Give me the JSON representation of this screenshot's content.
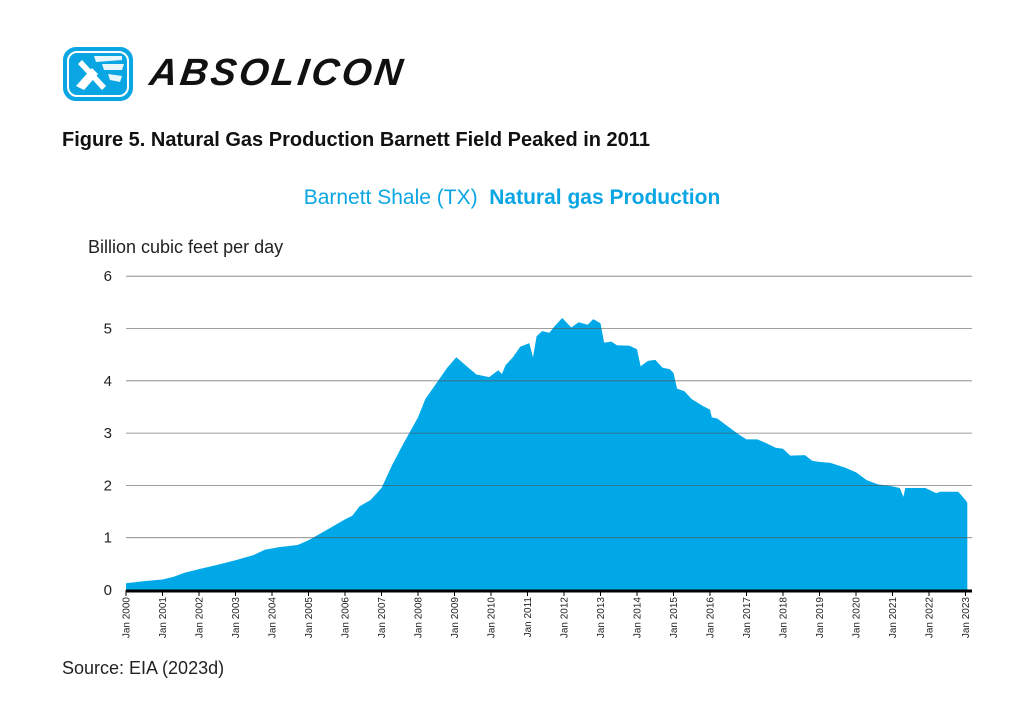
{
  "brand": {
    "name": "ABSOLICON",
    "logo_icon": "solar-collector-logo",
    "accent": "#0aa6e4"
  },
  "figure_title": "Figure 5. Natural Gas Production Barnett Field Peaked in 2011",
  "source": "Source: EIA (2023d)",
  "chart_data": {
    "type": "area",
    "title_part1": "Barnett Shale (TX)",
    "title_part2": "Natural gas Production",
    "ylabel": "Billion cubic feet per day",
    "xlabel": "",
    "ylim": [
      0,
      6
    ],
    "yticks": [
      "0",
      "1",
      "2",
      "3",
      "4",
      "5",
      "6"
    ],
    "xlim": [
      2000,
      2023.05
    ],
    "xticks": [
      "Jan 2000",
      "Jan 2001",
      "Jan 2002",
      "Jan 2003",
      "Jan 2004",
      "Jan 2005",
      "Jan 2006",
      "Jan 2007",
      "Jan 2008",
      "Jan 2009",
      "Jan 2010",
      "Jan 2011",
      "Jan 2012",
      "Jan 2013",
      "Jan 2014",
      "Jan 2015",
      "Jan 2016",
      "Jan 2017",
      "Jan 2018",
      "Jan 2019",
      "Jan 2020",
      "Jan 2021",
      "Jan 2022",
      "Jan 2023"
    ],
    "grid": true,
    "color": "#00a8e8",
    "x": [
      2000.0,
      2000.5,
      2001.0,
      2001.3,
      2001.6,
      2002.0,
      2002.5,
      2003.0,
      2003.5,
      2003.8,
      2004.2,
      2004.7,
      2005.0,
      2005.5,
      2006.0,
      2006.2,
      2006.4,
      2006.7,
      2007.0,
      2007.3,
      2007.6,
      2008.0,
      2008.2,
      2008.5,
      2008.8,
      2009.05,
      2009.3,
      2009.6,
      2009.95,
      2010.2,
      2010.3,
      2010.4,
      2010.6,
      2010.8,
      2011.05,
      2011.15,
      2011.25,
      2011.4,
      2011.6,
      2011.75,
      2011.95,
      2012.2,
      2012.4,
      2012.65,
      2012.8,
      2013.0,
      2013.1,
      2013.3,
      2013.45,
      2013.8,
      2014.0,
      2014.1,
      2014.3,
      2014.5,
      2014.7,
      2014.9,
      2015.0,
      2015.1,
      2015.3,
      2015.5,
      2015.8,
      2016.0,
      2016.05,
      2016.2,
      2016.5,
      2016.8,
      2017.0,
      2017.3,
      2017.5,
      2017.8,
      2018.0,
      2018.2,
      2018.6,
      2018.8,
      2019.0,
      2019.3,
      2019.7,
      2020.0,
      2020.3,
      2020.6,
      2021.0,
      2021.2,
      2021.3,
      2021.35,
      2021.9,
      2022.2,
      2022.3,
      2022.8,
      2023.0,
      2023.05
    ],
    "values": [
      0.13,
      0.17,
      0.2,
      0.25,
      0.33,
      0.4,
      0.48,
      0.57,
      0.67,
      0.77,
      0.82,
      0.86,
      0.95,
      1.15,
      1.35,
      1.42,
      1.6,
      1.72,
      1.95,
      2.4,
      2.8,
      3.3,
      3.65,
      3.95,
      4.25,
      4.45,
      4.3,
      4.12,
      4.07,
      4.2,
      4.13,
      4.3,
      4.45,
      4.65,
      4.72,
      4.45,
      4.85,
      4.95,
      4.92,
      5.05,
      5.2,
      5.02,
      5.12,
      5.07,
      5.18,
      5.1,
      4.73,
      4.75,
      4.68,
      4.67,
      4.6,
      4.28,
      4.38,
      4.4,
      4.25,
      4.22,
      4.15,
      3.85,
      3.8,
      3.65,
      3.52,
      3.45,
      3.3,
      3.28,
      3.12,
      2.97,
      2.88,
      2.88,
      2.82,
      2.72,
      2.7,
      2.57,
      2.58,
      2.47,
      2.45,
      2.43,
      2.34,
      2.25,
      2.1,
      2.02,
      1.98,
      1.95,
      1.78,
      1.95,
      1.95,
      1.85,
      1.88,
      1.88,
      1.72,
      1.67
    ]
  }
}
